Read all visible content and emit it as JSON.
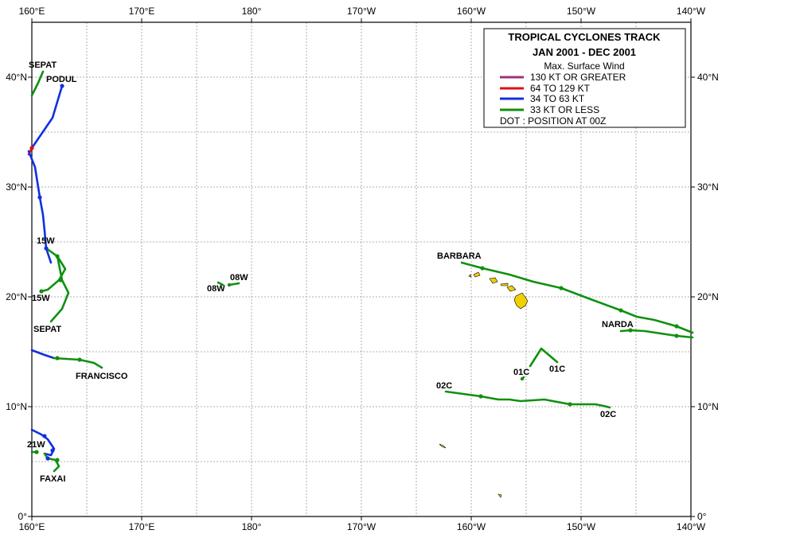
{
  "title_line1": "TROPICAL  CYCLONES  TRACK",
  "title_line2": "JAN 2001  -  DEC 2001",
  "legend": {
    "header": "Max. Surface Wind",
    "items": [
      {
        "label": "130 KT OR GREATER",
        "color": "#a0307a"
      },
      {
        "label": "64 TO 129 KT",
        "color": "#e01010"
      },
      {
        "label": "34 TO 63 KT",
        "color": "#1030e0"
      },
      {
        "label": "33 KT OR LESS",
        "color": "#109010"
      }
    ],
    "dot_note": "DOT : POSITION AT 00Z"
  },
  "x_ticks": [
    "160°E",
    "170°E",
    "180°",
    "170°W",
    "160°W",
    "150°W",
    "140°W"
  ],
  "y_ticks": [
    "0°",
    "10°N",
    "20°N",
    "30°N",
    "40°N"
  ],
  "colors": {
    "land": "#f0d000",
    "grid": "#999999"
  },
  "storm_labels": [
    "SEPAT",
    "PODUL",
    "15W",
    "15W",
    "SEPAT",
    "08W",
    "08W",
    "BARBARA",
    "NARDA",
    "FRANCISCO",
    "01C",
    "01C",
    "02C",
    "02C",
    "21W",
    "FAXAI"
  ]
}
